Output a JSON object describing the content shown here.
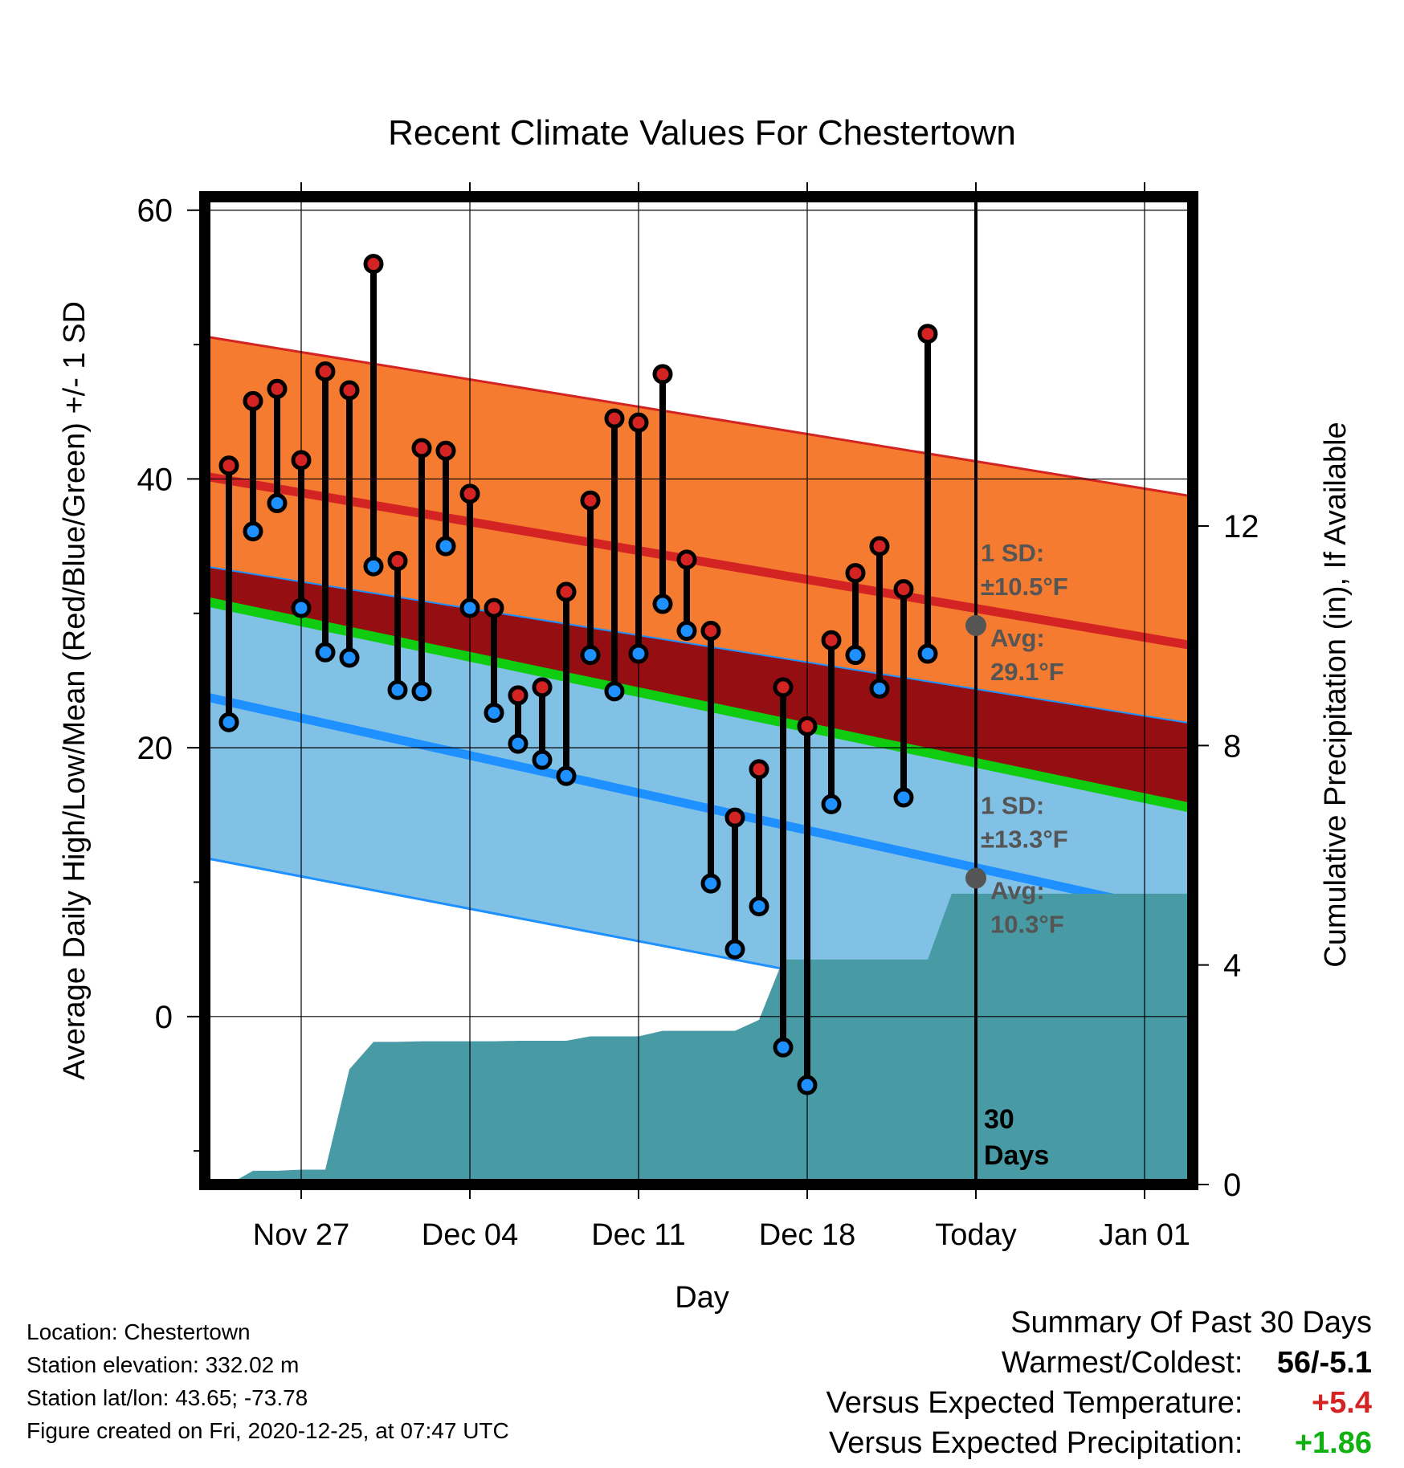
{
  "chart_data": {
    "type": "line",
    "title": "Recent Climate Values For Chestertown",
    "xlabel": "Day",
    "ylabel": "Average Daily High/Low/Mean (Red/Blue/Green) +/- 1 SD",
    "ylabel_right": "Cumulative Precipitation (in), If Available",
    "x_ticks": [
      "Nov 27",
      "Dec 04",
      "Dec 11",
      "Dec 18",
      "Today",
      "Jan 01"
    ],
    "y_ticks": [
      0,
      20,
      40,
      60
    ],
    "y_ticks_right": [
      0,
      4,
      8,
      12
    ],
    "ylim": [
      -12.5,
      61
    ],
    "ylim_right": [
      0,
      18
    ],
    "x_start": "2020-11-23",
    "x_end": "2021-01-03",
    "today": "2020-12-25",
    "grid": true,
    "observed": {
      "dates": [
        "2020-11-24",
        "2020-11-25",
        "2020-11-26",
        "2020-11-27",
        "2020-11-28",
        "2020-11-29",
        "2020-11-30",
        "2020-12-01",
        "2020-12-02",
        "2020-12-03",
        "2020-12-04",
        "2020-12-05",
        "2020-12-06",
        "2020-12-07",
        "2020-12-08",
        "2020-12-09",
        "2020-12-10",
        "2020-12-11",
        "2020-12-12",
        "2020-12-13",
        "2020-12-14",
        "2020-12-15",
        "2020-12-16",
        "2020-12-17",
        "2020-12-18",
        "2020-12-19",
        "2020-12-20",
        "2020-12-21",
        "2020-12-22",
        "2020-12-23",
        "2020-12-24"
      ],
      "high": [
        41,
        45.8,
        46.7,
        41.4,
        48,
        46.6,
        56,
        33.9,
        42.3,
        42.1,
        38.9,
        30.4,
        23.9,
        24.5,
        31.6,
        38.4,
        44.5,
        44.2,
        47.8,
        34,
        28.7,
        14.8,
        18.4,
        24.5,
        21.6,
        28,
        33,
        35,
        31.8,
        50.8,
        null
      ],
      "low": [
        21.9,
        36.1,
        38.2,
        30.4,
        27.1,
        26.7,
        33.5,
        24.3,
        24.2,
        35,
        30.4,
        22.6,
        20.3,
        19.1,
        17.9,
        26.9,
        24.2,
        27,
        30.7,
        28.7,
        9.9,
        5,
        8.2,
        -2.3,
        -5.1,
        15.8,
        26.9,
        24.4,
        16.3,
        27,
        null
      ]
    },
    "normals": {
      "dates": [
        "2020-11-23",
        "2021-01-03"
      ],
      "high_avg": [
        40.2,
        27.6
      ],
      "high_upper": [
        50.6,
        38.7
      ],
      "high_lower": [
        33.5,
        21.8
      ],
      "low_avg": [
        23.8,
        7.5
      ],
      "low_upper": [
        30.9,
        15.5
      ],
      "low_lower": [
        11.8,
        -2.3
      ]
    },
    "precipitation": {
      "dates": [
        "2020-11-23",
        "2020-11-24",
        "2020-11-25",
        "2020-11-26",
        "2020-11-27",
        "2020-11-28",
        "2020-11-29",
        "2020-11-30",
        "2020-12-01",
        "2020-12-02",
        "2020-12-03",
        "2020-12-04",
        "2020-12-05",
        "2020-12-06",
        "2020-12-07",
        "2020-12-08",
        "2020-12-09",
        "2020-12-10",
        "2020-12-11",
        "2020-12-12",
        "2020-12-13",
        "2020-12-14",
        "2020-12-15",
        "2020-12-16",
        "2020-12-17",
        "2020-12-18",
        "2020-12-19",
        "2020-12-20",
        "2020-12-21",
        "2020-12-22",
        "2020-12-23",
        "2020-12-24",
        "2021-01-03"
      ],
      "cumulative": [
        0,
        0,
        0.25,
        0.25,
        0.27,
        0.27,
        2.1,
        2.6,
        2.6,
        2.61,
        2.61,
        2.61,
        2.61,
        2.62,
        2.62,
        2.62,
        2.7,
        2.7,
        2.7,
        2.8,
        2.8,
        2.8,
        2.8,
        3,
        4.1,
        4.1,
        4.1,
        4.1,
        4.1,
        4.1,
        4.1,
        5.3,
        5.3
      ]
    },
    "annotations": {
      "high_sd_label": "1 SD:",
      "high_sd_value": "±10.5°F",
      "high_avg_label": "Avg:",
      "high_avg_value": "29.1°F",
      "high_avg_point": 29.1,
      "low_sd_label": "1 SD:",
      "low_sd_value": "±13.3°F",
      "low_avg_label": "Avg:",
      "low_avg_value": "10.3°F",
      "low_avg_point": 10.3,
      "days_label_1": "30",
      "days_label_2": "Days"
    },
    "colors": {
      "high_band": "#f47b2f",
      "high_line": "#d42323",
      "high_point": "#d42323",
      "low_band": "#82c1e6",
      "low_line": "#1e90ff",
      "low_point": "#1e90ff",
      "mean_band": "#950f12",
      "mean_line": "#10cc10",
      "precip": "#489ba5",
      "annotation": "#555555"
    }
  },
  "info": {
    "location": "Location: Chestertown",
    "elevation": "Station elevation: 332.02 m",
    "latlon": "Station lat/lon: 43.65; -73.78",
    "created": "Figure created on Fri, 2020-12-25, at 07:47 UTC"
  },
  "summary": {
    "heading": "Summary Of Past 30 Days",
    "warmest_label": "Warmest/Coldest:",
    "warmest_value": "56/-5.1",
    "temp_label": "Versus Expected Temperature:",
    "temp_value": "+5.4",
    "temp_color": "#d42323",
    "precip_label": "Versus Expected Precipitation:",
    "precip_value": "+1.86",
    "precip_color": "#10b010"
  }
}
